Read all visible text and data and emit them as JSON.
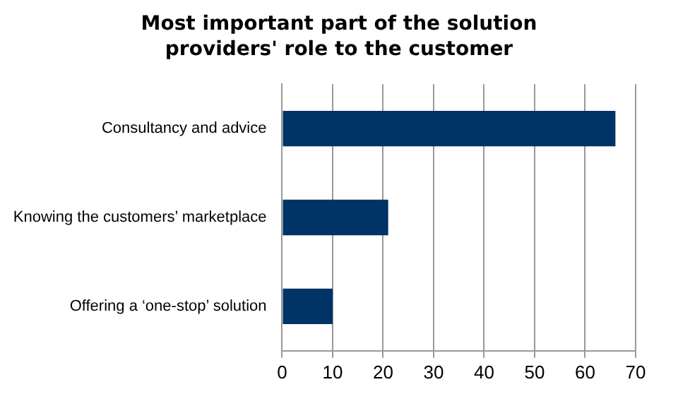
{
  "chart_data": {
    "type": "bar",
    "orientation": "horizontal",
    "title": "Most important part of the solution providers' role to the customer",
    "categories": [
      "Consultancy and advice",
      "Knowing the customers’ marketplace",
      "Offering a ‘one-stop’ solution"
    ],
    "values": [
      66,
      21,
      10
    ],
    "color": "#003366",
    "xlim": [
      0,
      70
    ],
    "xticks": [
      0,
      10,
      20,
      30,
      40,
      50,
      60,
      70
    ],
    "grid": "x"
  }
}
